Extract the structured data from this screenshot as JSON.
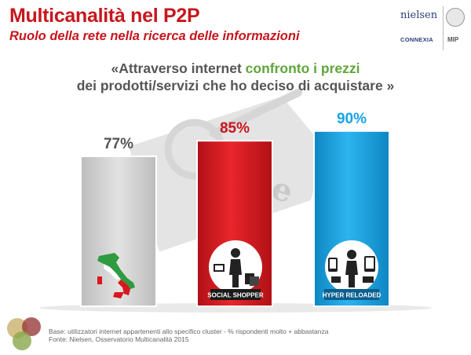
{
  "header": {
    "title": "Multicanalità nel P2P",
    "subtitle": "Ruolo della rete nella ricerca delle informazioni"
  },
  "logos": {
    "nielsen": "nielsen",
    "connexia": "CONNEXIA",
    "mip": "MIP"
  },
  "quote": {
    "open": "«Attraverso internet ",
    "highlight": "confronto i prezzi",
    "line2": "dei prodotti/servizi che ho deciso di acquistare  »"
  },
  "background_tag_text": "Price",
  "chart_data": {
    "type": "bar",
    "categories": [
      "",
      "SOCIAL SHOPPER",
      "HYPER RELOADED"
    ],
    "values": [
      77,
      85,
      90
    ],
    "value_labels": [
      "77%",
      "85%",
      "90%"
    ],
    "unit": "%",
    "colors": [
      "#d3d3d3",
      "#d9171d",
      "#1aa3e4"
    ],
    "label_colors": [
      "#555555",
      "#c8161d",
      "#1aa3e4"
    ],
    "icons": [
      "italy-map-icon",
      "shopper-icon",
      "hyper-connected-icon"
    ],
    "ylim": [
      0,
      100
    ],
    "grid": false,
    "legend": "none"
  },
  "footnote": {
    "line1": "Base: utilizzatori internet appartenenti allo specifico cluster - % rispondenti molto + abbastanza",
    "line2": "Fonte: Nielsen, Osservatorio Multicanalità 2015"
  }
}
